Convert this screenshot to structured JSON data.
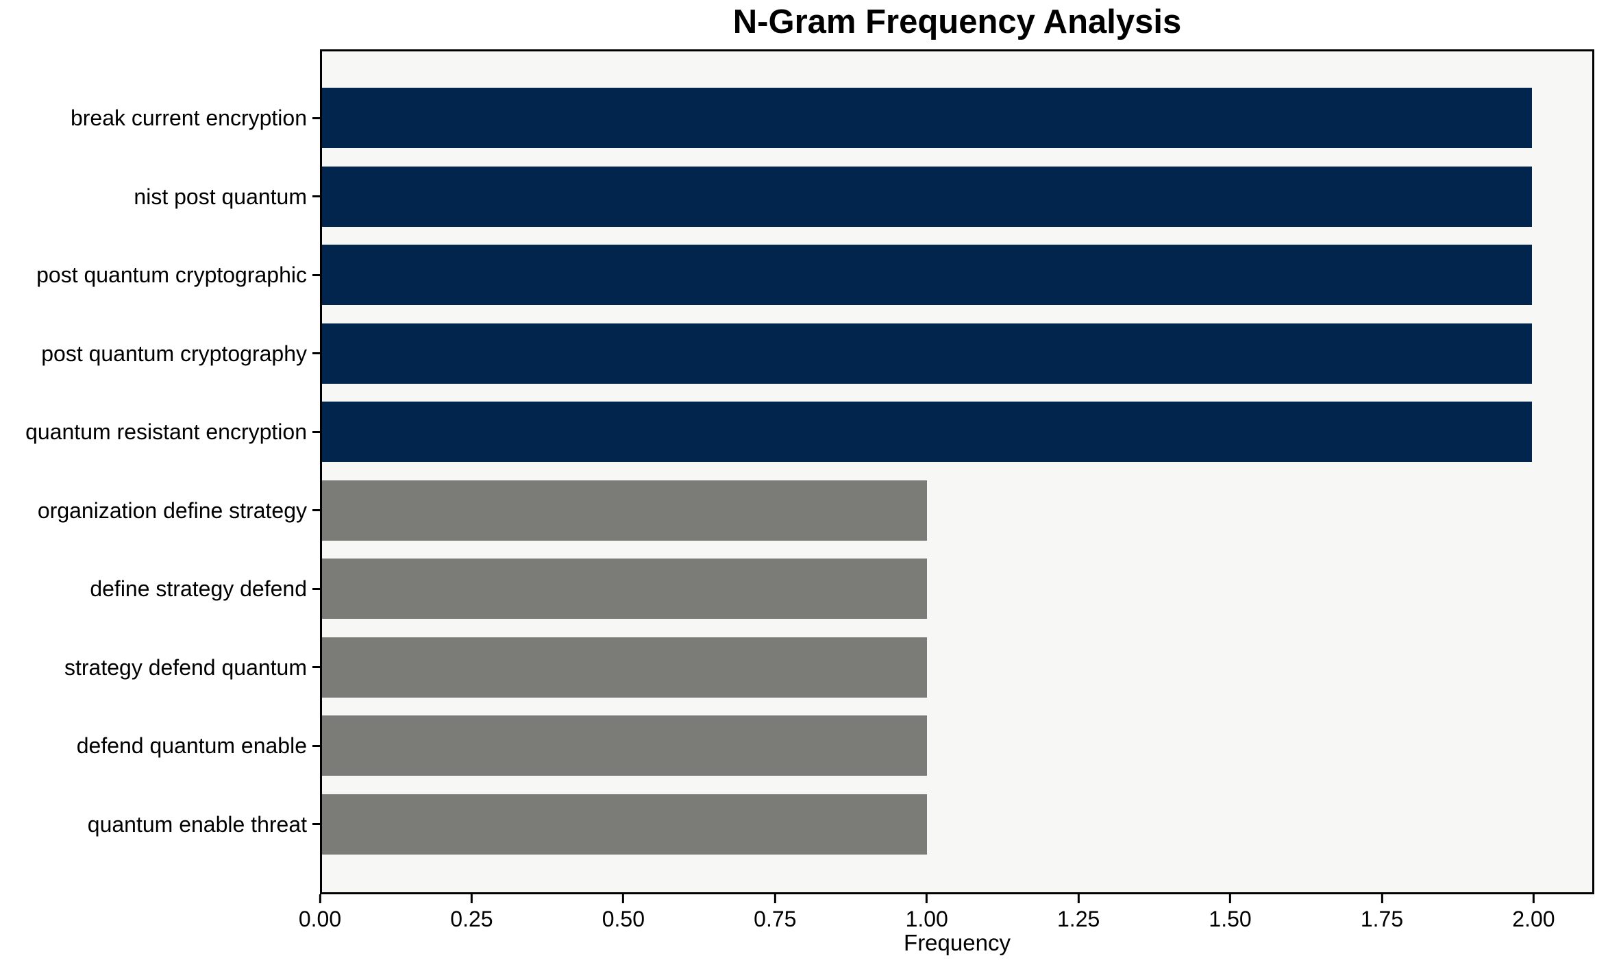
{
  "chart_data": {
    "type": "bar",
    "orientation": "horizontal",
    "title": "N-Gram Frequency Analysis",
    "xlabel": "Frequency",
    "ylabel": "",
    "xlim": [
      0,
      2.1
    ],
    "xticks": [
      0.0,
      0.25,
      0.5,
      0.75,
      1.0,
      1.25,
      1.5,
      1.75,
      2.0
    ],
    "xtick_labels": [
      "0.00",
      "0.25",
      "0.50",
      "0.75",
      "1.00",
      "1.25",
      "1.50",
      "1.75",
      "2.00"
    ],
    "grid": false,
    "legend": "none",
    "categories": [
      "break current encryption",
      "nist post quantum",
      "post quantum cryptographic",
      "post quantum cryptography",
      "quantum resistant encryption",
      "organization define strategy",
      "define strategy defend",
      "strategy defend quantum",
      "defend quantum enable",
      "quantum enable threat"
    ],
    "values": [
      2,
      2,
      2,
      2,
      2,
      1,
      1,
      1,
      1,
      1
    ],
    "bar_colors": [
      "#02254d",
      "#02254d",
      "#02254d",
      "#02254d",
      "#02254d",
      "#7b7b78",
      "#7b7b78",
      "#7b7b78",
      "#7b7b78",
      "#7b7b78"
    ],
    "colors": {
      "highlight_navy": "#02254d",
      "neutral_gray": "#7b7b78",
      "plot_background": "#f7f7f6",
      "figure_background": "#ffffff",
      "axis": "#000000"
    }
  }
}
